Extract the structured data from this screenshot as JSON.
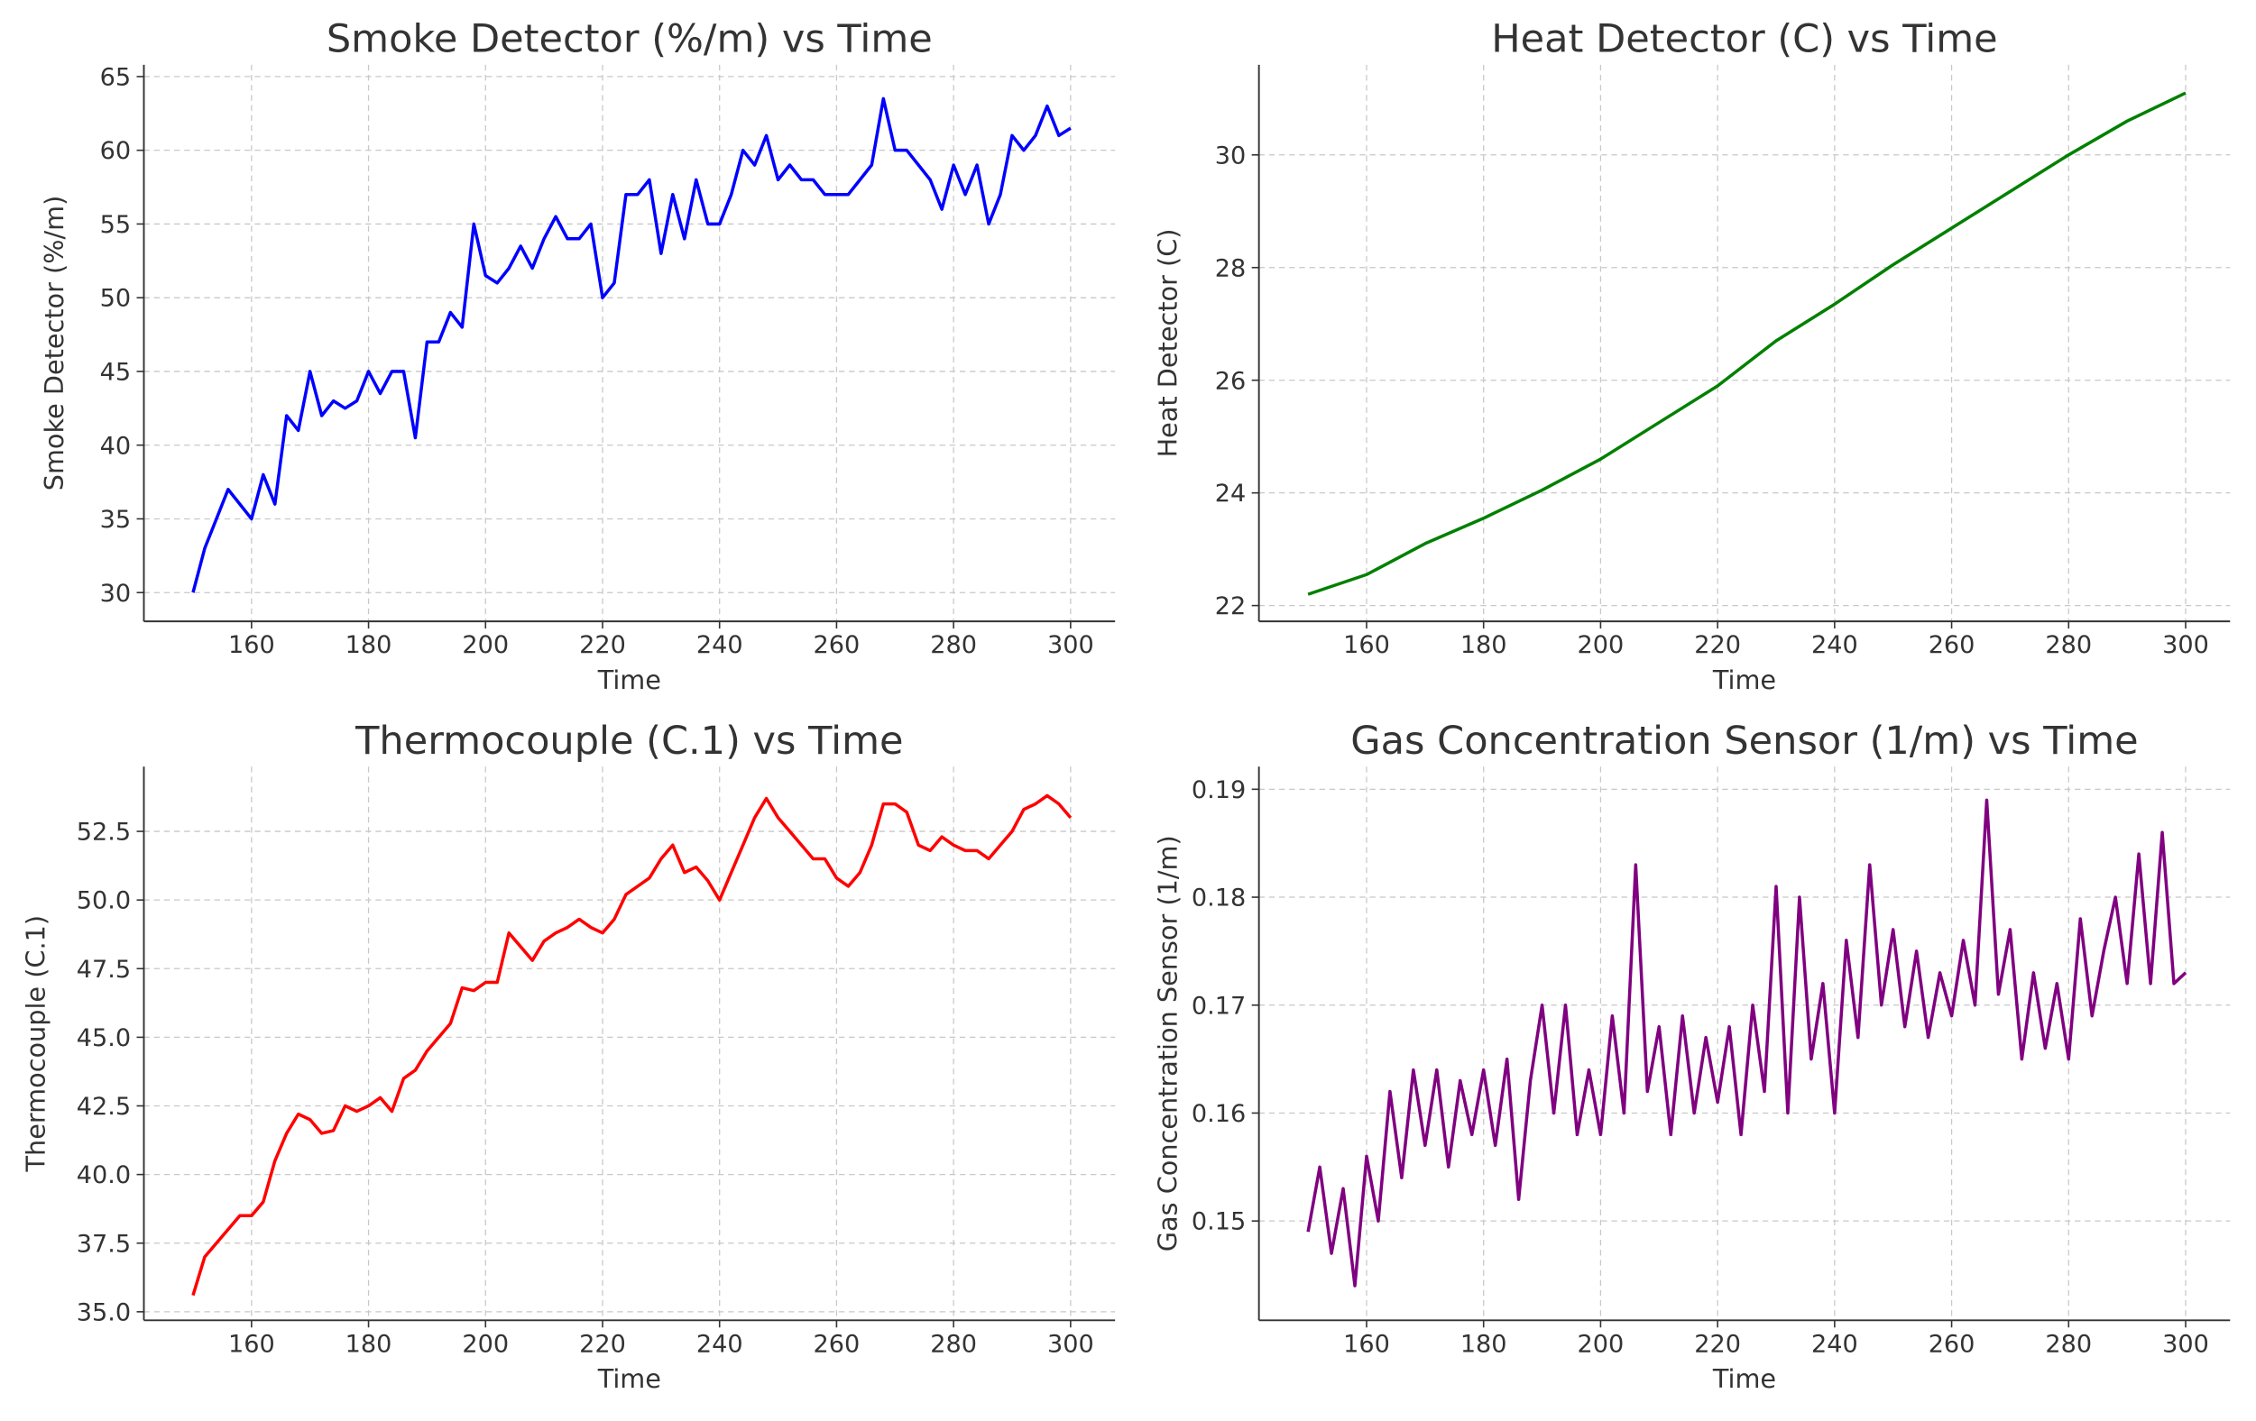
{
  "chart_data": [
    {
      "type": "line",
      "title": "Smoke Detector (%/m) vs Time",
      "xlabel": "Time",
      "ylabel": "Smoke Detector (%/m)",
      "color": "#0000ff",
      "grid": true,
      "xlim": [
        141.6,
        307.6
      ],
      "xticks": [
        160,
        180,
        200,
        220,
        240,
        260,
        280,
        300
      ],
      "ylim": [
        28.05,
        65.8
      ],
      "yticks": [
        30,
        35,
        40,
        45,
        50,
        55,
        60,
        65
      ],
      "x": [
        150,
        152,
        154,
        156,
        158,
        160,
        162,
        164,
        166,
        168,
        170,
        172,
        174,
        176,
        178,
        180,
        182,
        184,
        186,
        188,
        190,
        192,
        194,
        196,
        198,
        200,
        202,
        204,
        206,
        208,
        210,
        212,
        214,
        216,
        218,
        220,
        222,
        224,
        226,
        228,
        230,
        232,
        234,
        236,
        238,
        240,
        242,
        244,
        246,
        248,
        250,
        252,
        254,
        256,
        258,
        260,
        262,
        264,
        266,
        268,
        270,
        272,
        274,
        276,
        278,
        280,
        282,
        284,
        286,
        288,
        290,
        292,
        294,
        296,
        298,
        300
      ],
      "values": [
        30,
        33,
        35,
        37,
        36,
        35,
        38,
        36,
        42,
        41,
        45,
        42,
        43,
        42.5,
        43,
        45,
        43.5,
        45,
        45,
        40.5,
        47,
        47,
        49,
        48,
        55,
        51.5,
        51,
        52,
        53.5,
        52,
        54,
        55.5,
        54,
        54,
        55,
        50,
        51,
        57,
        57,
        58,
        53,
        57,
        54,
        58,
        55,
        55,
        57,
        60,
        59,
        61,
        58,
        59,
        58,
        58,
        57,
        57,
        57,
        58,
        59,
        63.5,
        60,
        60,
        59,
        58,
        56,
        59,
        57,
        59,
        55,
        57,
        61,
        60,
        61,
        63,
        61,
        61.5
      ]
    },
    {
      "type": "line",
      "title": "Heat Detector (C) vs Time",
      "xlabel": "Time",
      "ylabel": "Heat Detector (C)",
      "color": "#008000",
      "grid": true,
      "xlim": [
        141.6,
        307.6
      ],
      "xticks": [
        160,
        180,
        200,
        220,
        240,
        260,
        280,
        300
      ],
      "ylim": [
        21.72,
        31.6
      ],
      "yticks": [
        22,
        24,
        26,
        28,
        30
      ],
      "x": [
        150,
        160,
        170,
        180,
        190,
        200,
        210,
        220,
        230,
        240,
        250,
        260,
        270,
        280,
        290,
        300
      ],
      "values": [
        22.2,
        22.55,
        23.1,
        23.55,
        24.05,
        24.6,
        25.25,
        25.9,
        26.7,
        27.35,
        28.05,
        28.7,
        29.35,
        30.0,
        30.6,
        31.1
      ]
    },
    {
      "type": "line",
      "title": "Thermocouple (C.1) vs Time",
      "xlabel": "Time",
      "ylabel": "Thermocouple (C.1)",
      "color": "#ff0000",
      "grid": true,
      "xlim": [
        141.6,
        307.6
      ],
      "xticks": [
        160,
        180,
        200,
        220,
        240,
        260,
        280,
        300
      ],
      "ylim": [
        34.69,
        54.86
      ],
      "yticks": [
        {
          "value": 35,
          "label": "35.0"
        },
        37.5,
        {
          "value": 40,
          "label": "40.0"
        },
        42.5,
        {
          "value": 45,
          "label": "45.0"
        },
        47.5,
        {
          "value": 50,
          "label": "50.0"
        },
        52.5
      ],
      "x": [
        150,
        152,
        154,
        156,
        158,
        160,
        162,
        164,
        166,
        168,
        170,
        172,
        174,
        176,
        178,
        180,
        182,
        184,
        186,
        188,
        190,
        192,
        194,
        196,
        198,
        200,
        202,
        204,
        206,
        208,
        210,
        212,
        214,
        216,
        218,
        220,
        222,
        224,
        226,
        228,
        230,
        232,
        234,
        236,
        238,
        240,
        242,
        244,
        246,
        248,
        250,
        252,
        254,
        256,
        258,
        260,
        262,
        264,
        266,
        268,
        270,
        272,
        274,
        276,
        278,
        280,
        282,
        284,
        286,
        288,
        290,
        292,
        294,
        296,
        298,
        300
      ],
      "values": [
        35.6,
        37,
        37.5,
        38,
        38.5,
        38.5,
        39,
        40.5,
        41.5,
        42.2,
        42,
        41.5,
        41.6,
        42.5,
        42.3,
        42.5,
        42.8,
        42.3,
        43.5,
        43.8,
        44.5,
        45,
        45.5,
        46.8,
        46.7,
        47,
        47,
        48.8,
        48.3,
        47.8,
        48.5,
        48.8,
        49,
        49.3,
        49,
        48.8,
        49.3,
        50.2,
        50.5,
        50.8,
        51.5,
        52,
        51,
        51.2,
        50.7,
        50,
        51,
        52,
        53,
        53.7,
        53,
        52.5,
        52,
        51.5,
        51.5,
        50.8,
        50.5,
        51,
        52,
        53.5,
        53.5,
        53.2,
        52,
        51.8,
        52.3,
        52,
        51.8,
        51.8,
        51.5,
        52,
        52.5,
        53.3,
        53.5,
        53.8,
        53.5,
        53
      ]
    },
    {
      "type": "line",
      "title": "Gas Concentration Sensor (1/m) vs Time",
      "xlabel": "Time",
      "ylabel": "Gas Concentration Sensor (1/m)",
      "color": "#800080",
      "grid": true,
      "xlim": [
        141.6,
        307.6
      ],
      "xticks": [
        160,
        180,
        200,
        220,
        240,
        260,
        280,
        300
      ],
      "ylim": [
        0.1408,
        0.1921
      ],
      "yticks": [
        0.15,
        0.16,
        0.17,
        0.18,
        0.19
      ],
      "x": [
        150,
        152,
        154,
        156,
        158,
        160,
        162,
        164,
        166,
        168,
        170,
        172,
        174,
        176,
        178,
        180,
        182,
        184,
        186,
        188,
        190,
        192,
        194,
        196,
        198,
        200,
        202,
        204,
        206,
        208,
        210,
        212,
        214,
        216,
        218,
        220,
        222,
        224,
        226,
        228,
        230,
        232,
        234,
        236,
        238,
        240,
        242,
        244,
        246,
        248,
        250,
        252,
        254,
        256,
        258,
        260,
        262,
        264,
        266,
        268,
        270,
        272,
        274,
        276,
        278,
        280,
        282,
        284,
        286,
        288,
        290,
        292,
        294,
        296,
        298,
        300
      ],
      "values": [
        0.149,
        0.155,
        0.147,
        0.153,
        0.144,
        0.156,
        0.15,
        0.162,
        0.154,
        0.164,
        0.157,
        0.164,
        0.155,
        0.163,
        0.158,
        0.164,
        0.157,
        0.165,
        0.152,
        0.163,
        0.17,
        0.16,
        0.17,
        0.158,
        0.164,
        0.158,
        0.169,
        0.16,
        0.183,
        0.162,
        0.168,
        0.158,
        0.169,
        0.16,
        0.167,
        0.161,
        0.168,
        0.158,
        0.17,
        0.162,
        0.181,
        0.16,
        0.18,
        0.165,
        0.172,
        0.16,
        0.176,
        0.167,
        0.183,
        0.17,
        0.177,
        0.168,
        0.175,
        0.167,
        0.173,
        0.169,
        0.176,
        0.17,
        0.189,
        0.171,
        0.177,
        0.165,
        0.173,
        0.166,
        0.172,
        0.165,
        0.178,
        0.169,
        0.175,
        0.18,
        0.172,
        0.184,
        0.172,
        0.186,
        0.172,
        0.173
      ]
    }
  ]
}
